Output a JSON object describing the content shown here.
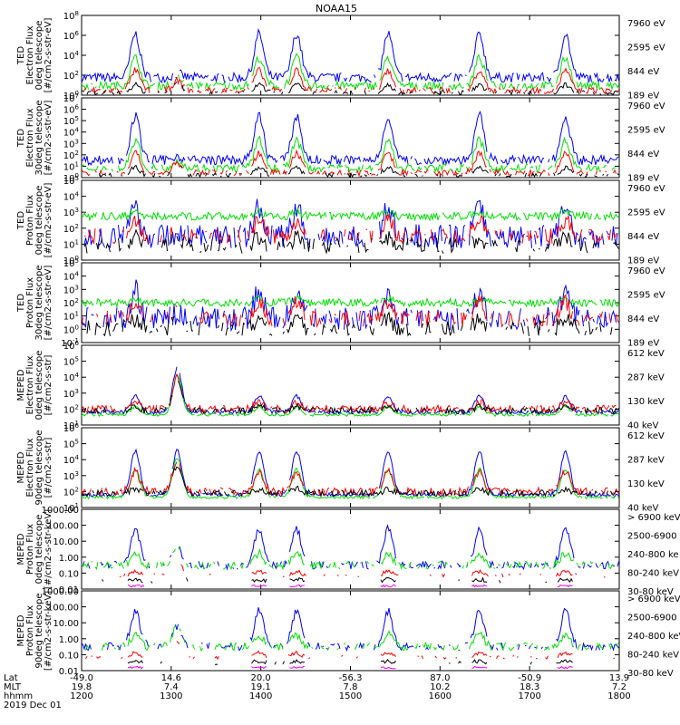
{
  "title": "NOAA15",
  "colors": {
    "black": "#000000",
    "red": "#ff0000",
    "green": "#00e000",
    "blue": "#0000ff",
    "magenta": "#ff00ff"
  },
  "chart_data": [
    {
      "type": "line",
      "ylabel": [
        "TED",
        "Electron Flux",
        "0deg telescope",
        "[#/cm2-s-str-eV]"
      ],
      "yscale": "log",
      "ylim": [
        1,
        100000000.0
      ],
      "yticks": [
        "10^0",
        "10^2",
        "10^4",
        "10^6",
        "10^8"
      ],
      "series": [
        {
          "name": "7960 eV",
          "color": "#000000"
        },
        {
          "name": "2595 eV",
          "color": "#ff0000"
        },
        {
          "name": "844 eV",
          "color": "#00e000"
        },
        {
          "name": "189 eV",
          "color": "#0000ff"
        }
      ]
    },
    {
      "type": "line",
      "ylabel": [
        "TED",
        "Electron Flux",
        "30deg telescope",
        "[#/cm2-s-str-eV]"
      ],
      "yscale": "log",
      "ylim": [
        1,
        10000000.0
      ],
      "yticks": [
        "10^0",
        "10^1",
        "10^2",
        "10^3",
        "10^4",
        "10^5",
        "10^6",
        "10^7"
      ],
      "series": [
        {
          "name": "7960 eV",
          "color": "#000000"
        },
        {
          "name": "2595 eV",
          "color": "#ff0000"
        },
        {
          "name": "844 eV",
          "color": "#00e000"
        },
        {
          "name": "189 eV",
          "color": "#0000ff"
        }
      ]
    },
    {
      "type": "line",
      "ylabel": [
        "TED",
        "Proton Flux",
        "0deg telescope",
        "[#/cm2-s-str-eV]"
      ],
      "yscale": "log",
      "ylim": [
        1,
        100000.0
      ],
      "yticks": [
        "10^0",
        "10^1",
        "10^2",
        "10^3",
        "10^4",
        "10^5"
      ],
      "series": [
        {
          "name": "7960 eV",
          "color": "#000000"
        },
        {
          "name": "2595 eV",
          "color": "#ff0000"
        },
        {
          "name": "844 eV",
          "color": "#00e000"
        },
        {
          "name": "189 eV",
          "color": "#0000ff"
        }
      ]
    },
    {
      "type": "line",
      "ylabel": [
        "TED",
        "Proton Flux",
        "30deg telescope",
        "[#/cm2-s-str-eV]"
      ],
      "yscale": "log",
      "ylim": [
        0.1,
        100000.0
      ],
      "yticks": [
        "10^-1",
        "10^0",
        "10^1",
        "10^2",
        "10^3",
        "10^4",
        "10^5"
      ],
      "series": [
        {
          "name": "7960 eV",
          "color": "#000000"
        },
        {
          "name": "2595 eV",
          "color": "#ff0000"
        },
        {
          "name": "844 eV",
          "color": "#00e000"
        },
        {
          "name": "189 eV",
          "color": "#0000ff"
        }
      ]
    },
    {
      "type": "line",
      "ylabel": [
        "MEPED",
        "Electron Flux",
        "0deg telescope",
        "[#/cm2-s-str]"
      ],
      "yscale": "log",
      "ylim": [
        10,
        1000000.0
      ],
      "yticks": [
        "10^1",
        "10^2",
        "10^3",
        "10^4",
        "10^5",
        "10^6"
      ],
      "series": [
        {
          "name": "612 keV",
          "color": "#000000"
        },
        {
          "name": "287 keV",
          "color": "#ff0000"
        },
        {
          "name": "130 keV",
          "color": "#00e000"
        },
        {
          "name": "40 keV",
          "color": "#0000ff"
        }
      ]
    },
    {
      "type": "line",
      "ylabel": [
        "MEPED",
        "Electron Flux",
        "90deg telescope",
        "[#/cm2-s-str]"
      ],
      "yscale": "log",
      "ylim": [
        10,
        1000000.0
      ],
      "yticks": [
        "10^1",
        "10^2",
        "10^3",
        "10^4",
        "10^5",
        "10^6"
      ],
      "series": [
        {
          "name": "612 keV",
          "color": "#000000"
        },
        {
          "name": "287 keV",
          "color": "#ff0000"
        },
        {
          "name": "130 keV",
          "color": "#00e000"
        },
        {
          "name": "40 keV",
          "color": "#0000ff"
        }
      ]
    },
    {
      "type": "line",
      "ylabel": [
        "MEPED",
        "Proton Flux",
        "0deg telescope",
        "[#/cm2-s-str-keV]"
      ],
      "yscale": "log",
      "ylim": [
        0.01,
        1000
      ],
      "yticks": [
        "0.01",
        "0.10",
        "1.00",
        "10.00",
        "100.00",
        "1000.00"
      ],
      "series": [
        {
          "name": "> 6900 keV",
          "color": "#ff00ff"
        },
        {
          "name": "2500-6900",
          "color": "#000000"
        },
        {
          "name": "240-800 ke",
          "color": "#ff0000"
        },
        {
          "name": "80-240 keV",
          "color": "#00e000"
        },
        {
          "name": "30-80 keV",
          "color": "#0000ff"
        }
      ]
    },
    {
      "type": "line",
      "ylabel": [
        "MEPED",
        "Proton Flux",
        "90deg telescope",
        "[#/cm2-s-str-keV]"
      ],
      "yscale": "log",
      "ylim": [
        0.01,
        1000
      ],
      "yticks": [
        "0.01",
        "0.10",
        "1.00",
        "10.00",
        "100.00",
        "1000.00"
      ],
      "series": [
        {
          "name": "> 6900 keV",
          "color": "#ff00ff"
        },
        {
          "name": "2500-6900",
          "color": "#000000"
        },
        {
          "name": "240-800 keV",
          "color": "#ff0000"
        },
        {
          "name": "80-240 keV",
          "color": "#00e000"
        },
        {
          "name": "30-80 keV",
          "color": "#0000ff"
        }
      ]
    }
  ],
  "xaxis": {
    "row_labels": [
      "Lat",
      "MLT",
      "hhmm"
    ],
    "ticks": [
      {
        "lat": "-49.0",
        "mlt": "19.8",
        "hhmm": "1200"
      },
      {
        "lat": "14.6",
        "mlt": "7.4",
        "hhmm": "1300"
      },
      {
        "lat": "20.0",
        "mlt": "19.1",
        "hhmm": "1400"
      },
      {
        "lat": "-56.3",
        "mlt": "7.8",
        "hhmm": "1500"
      },
      {
        "lat": "87.0",
        "mlt": "10.2",
        "hhmm": "1600"
      },
      {
        "lat": "-50.9",
        "mlt": "18.3",
        "hhmm": "1700"
      },
      {
        "lat": "13.9",
        "mlt": "7.2",
        "hhmm": "1800"
      }
    ],
    "date": "2019 Dec 01"
  }
}
